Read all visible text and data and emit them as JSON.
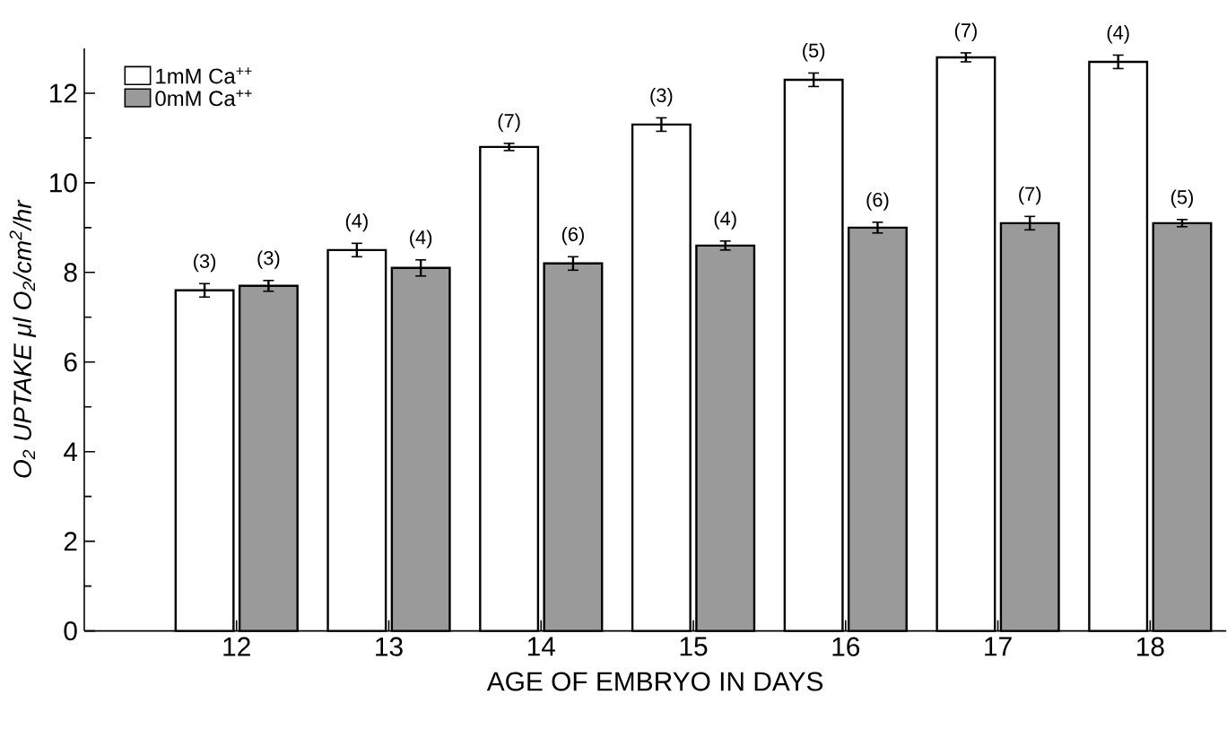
{
  "chart_data": {
    "type": "bar",
    "xlabel": "AGE OF EMBRYO IN DAYS",
    "ylabel": "O$_{2}$ UPTAKE  μl O$_{2}$/cm$^{2}$/hr",
    "categories": [
      "12",
      "13",
      "14",
      "15",
      "16",
      "17",
      "18"
    ],
    "series": [
      {
        "name": "1mM Ca$^{++}$",
        "color": "#ffffff",
        "values": [
          7.6,
          8.5,
          10.8,
          11.3,
          12.3,
          12.8,
          12.7
        ],
        "errors": [
          0.15,
          0.15,
          0.08,
          0.15,
          0.15,
          0.1,
          0.15
        ]
      },
      {
        "name": "0mM Ca$^{++}$",
        "color": "#9a9a9a",
        "values": [
          7.7,
          8.1,
          8.2,
          8.6,
          9.0,
          9.1,
          9.1
        ],
        "errors": [
          0.12,
          0.18,
          0.15,
          0.1,
          0.12,
          0.15,
          0.08
        ]
      }
    ],
    "ylim": [
      0,
      13
    ],
    "yticks": [
      0,
      2,
      4,
      6,
      8,
      10,
      12
    ],
    "legend": "top left",
    "grid": false,
    "annotations": [
      {
        "text": "(3)",
        "x": "12",
        "y": 7.6
      },
      {
        "text": "(3)",
        "x": "12",
        "y": 7.7
      },
      {
        "text": "(4)",
        "x": "13",
        "y": 8.5
      },
      {
        "text": "(4)",
        "x": "13",
        "y": 8.1
      },
      {
        "text": "(7)",
        "x": "14",
        "y": 10.8
      },
      {
        "text": "(6)",
        "x": "14",
        "y": 8.2
      },
      {
        "text": "(3)",
        "x": "15",
        "y": 11.3
      },
      {
        "text": "(4)",
        "x": "15",
        "y": 8.6
      },
      {
        "text": "(5)",
        "x": "16",
        "y": 12.3
      },
      {
        "text": "(6)",
        "x": "16",
        "y": 9.0
      },
      {
        "text": "(7)",
        "x": "17",
        "y": 12.8
      },
      {
        "text": "(7)",
        "x": "17",
        "y": 9.1
      },
      {
        "text": "(4)",
        "x": "18",
        "y": 12.7
      },
      {
        "text": "(5)",
        "x": "18",
        "y": 9.1
      }
    ]
  }
}
